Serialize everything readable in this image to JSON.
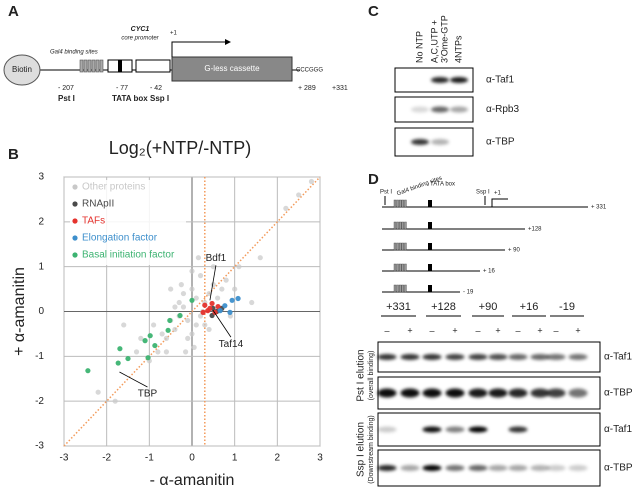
{
  "panel_a": {
    "label": "A",
    "biotin": "Biotin",
    "gal4": "Gal4 binding sites",
    "cyc1": "CYC1",
    "core_promoter": "core promoter",
    "tss": "+1",
    "cassette": "G-less cassette",
    "site": "CCCGGG",
    "pos_207": "- 207",
    "pst": "Pst I",
    "pos_77": "- 77",
    "tata": "TATA box",
    "pos_42": "- 42",
    "ssp": "Ssp I",
    "pos_289": "+ 289",
    "pos_331": "+331"
  },
  "panel_b_label": "B",
  "chart_data": {
    "type": "scatter",
    "title": "Log₂(+NTP/-NTP)",
    "xlabel": "- α-amanitin",
    "ylabel": "+ α-amanitin",
    "xlim": [
      -3,
      3
    ],
    "ylim": [
      -3,
      3
    ],
    "xticks": [
      -3,
      -2,
      -1,
      0,
      1,
      2,
      3
    ],
    "yticks": [
      -3,
      -2,
      -1,
      0,
      1,
      2,
      3
    ],
    "grid": true,
    "legend": "upper left",
    "reference_color": "#f39a5a",
    "diagonal": {
      "slope": 1,
      "intercept": 0
    },
    "vline": 0.3,
    "series": [
      {
        "name": "Other proteins",
        "color": "#c8c8c8",
        "x": [
          -0.2,
          0.1,
          0.3,
          -0.1,
          0.0,
          0.2,
          -0.3,
          0.4,
          -0.4,
          0.1,
          -0.5,
          0.5,
          -0.6,
          0.6,
          -0.2,
          0.2,
          -0.1,
          0.0,
          0.3,
          -0.3,
          -0.7,
          0.7,
          -0.8,
          0.8,
          0.0,
          -0.9,
          0.4,
          -0.4,
          0.15,
          -0.15,
          -1.0,
          1.1,
          -1.3,
          1.4,
          -1.6,
          2.2,
          2.5,
          -2.2,
          1.0,
          -0.6,
          0.9,
          -1.2,
          0.5,
          -0.5,
          0.25,
          -0.25,
          1.6,
          -1.8,
          2.8,
          0.05
        ],
        "y": [
          0.1,
          0.3,
          0.2,
          -0.2,
          0.5,
          -0.1,
          -0.1,
          0.4,
          -0.4,
          -0.3,
          -0.2,
          0.6,
          -0.6,
          0.3,
          0.4,
          0.8,
          -0.6,
          -0.5,
          -0.3,
          0.2,
          -0.5,
          0.5,
          -0.9,
          0.7,
          0.9,
          -0.3,
          -0.4,
          0.1,
          1.2,
          -0.9,
          -1.1,
          1.0,
          -0.9,
          0.2,
          -0.3,
          2.3,
          2.6,
          -1.8,
          0.5,
          -0.9,
          -0.1,
          -0.6,
          1.0,
          0.5,
          0.0,
          0.6,
          1.2,
          -2.0,
          2.9,
          -0.8
        ]
      },
      {
        "name": "RNApII",
        "color": "#4a4a4a",
        "x": [
          0.49,
          0.58,
          0.7,
          0.47
        ],
        "y": [
          0.07,
          0.0,
          0.07,
          -0.09
        ]
      },
      {
        "name": "TAFs",
        "color": "#e5322d",
        "x": [
          0.3,
          0.37,
          0.47,
          0.54,
          0.42,
          0.61,
          0.26
        ],
        "y": [
          0.14,
          0.02,
          0.18,
          -0.02,
          0.07,
          0.11,
          -0.02
        ]
      },
      {
        "name": "Elongation factor",
        "color": "#3d8fcc",
        "x": [
          0.77,
          0.94,
          1.08,
          0.89,
          0.66
        ],
        "y": [
          0.13,
          0.25,
          0.29,
          -0.02,
          0.02
        ]
      },
      {
        "name": "Basal initiation factor",
        "color": "#3cb371",
        "x": [
          -2.44,
          -1.69,
          -1.5,
          -1.1,
          -0.98,
          -1.03,
          -0.87,
          -0.56,
          -0.52,
          -0.28,
          -1.73,
          0.0
        ],
        "y": [
          -1.32,
          -0.83,
          -1.05,
          -0.65,
          -0.54,
          -1.03,
          -0.76,
          -0.42,
          -0.2,
          -0.09,
          -1.15,
          0.25
        ]
      }
    ],
    "annotations": [
      {
        "text": "Bdf1",
        "x": 0.42,
        "y": 0.25
      },
      {
        "text": "Taf14",
        "x": 0.49,
        "y": 0.03
      },
      {
        "text": "TBP",
        "x": -1.7,
        "y": -1.35
      }
    ]
  },
  "panel_c": {
    "label": "C",
    "lanes": [
      [
        "No NTP"
      ],
      [
        "A,C,UTP +",
        "3'Ome-GTP"
      ],
      [
        "4NTPs"
      ]
    ],
    "blots": [
      "α-Taf1",
      "α-Rpb3",
      "α-TBP"
    ]
  },
  "panel_d": {
    "label": "D",
    "diagram": {
      "pst": "Pst I",
      "gal4": "Gal4 binding sites",
      "tata": "TATA box",
      "ssp": "Ssp I",
      "tss": "+1",
      "templates": [
        "+ 331",
        "+128",
        "+ 90",
        "+ 16",
        "- 19"
      ]
    },
    "templates": [
      "+331",
      "+128",
      "+90",
      "+16",
      "-19"
    ],
    "treatment": [
      "–",
      "+"
    ],
    "blots": [
      "α-Taf1",
      "α-TBP",
      "α-Taf1",
      "α-TBP"
    ],
    "elutions": [
      {
        "name": "Pst I elution",
        "note": "(overall binding)"
      },
      {
        "name": "Ssp I elution",
        "note": "(Downstream binding)"
      }
    ]
  }
}
